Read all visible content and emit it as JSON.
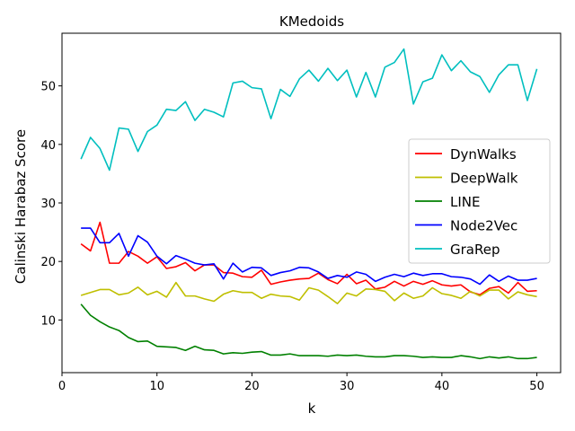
{
  "chart_data": {
    "type": "line",
    "title": "KMedoids",
    "xlabel": "k",
    "ylabel": "Calinski Harabaz Score",
    "xlim": [
      0,
      52.5
    ],
    "ylim": [
      1,
      59
    ],
    "xticks": [
      0,
      10,
      20,
      30,
      40,
      50
    ],
    "yticks": [
      10,
      20,
      30,
      40,
      50
    ],
    "legend_position": "center-right",
    "x": [
      2,
      3,
      4,
      5,
      6,
      7,
      8,
      9,
      10,
      11,
      12,
      13,
      14,
      15,
      16,
      17,
      18,
      19,
      20,
      21,
      22,
      23,
      24,
      25,
      26,
      27,
      28,
      29,
      30,
      31,
      32,
      33,
      34,
      35,
      36,
      37,
      38,
      39,
      40,
      41,
      42,
      43,
      44,
      45,
      46,
      47,
      48,
      49,
      50
    ],
    "series": [
      {
        "name": "DynWalks",
        "color": "#ff0000",
        "values": [
          23.0,
          21.8,
          26.7,
          19.7,
          19.7,
          21.7,
          20.9,
          19.7,
          20.8,
          18.8,
          19.1,
          19.8,
          18.4,
          19.4,
          19.4,
          18.1,
          18.0,
          17.4,
          17.3,
          18.5,
          16.1,
          16.5,
          16.8,
          17.0,
          17.1,
          18.0,
          16.9,
          16.2,
          17.8,
          16.2,
          16.8,
          15.3,
          15.6,
          16.6,
          15.8,
          16.6,
          16.1,
          16.7,
          16.0,
          15.8,
          16.0,
          14.8,
          14.3,
          15.4,
          15.7,
          14.6,
          16.4,
          14.9,
          15.0
        ]
      },
      {
        "name": "DeepWalk",
        "color": "#bfbf00",
        "values": [
          14.2,
          14.7,
          15.2,
          15.2,
          14.3,
          14.6,
          15.6,
          14.3,
          14.9,
          13.9,
          16.4,
          14.1,
          14.1,
          13.6,
          13.2,
          14.4,
          15.0,
          14.7,
          14.7,
          13.7,
          14.4,
          14.1,
          14.0,
          13.4,
          15.5,
          15.1,
          14.0,
          12.8,
          14.6,
          14.1,
          15.3,
          15.2,
          14.9,
          13.3,
          14.6,
          13.7,
          14.1,
          15.5,
          14.5,
          14.2,
          13.7,
          14.9,
          14.1,
          15.1,
          15.1,
          13.6,
          14.8,
          14.3,
          14.0
        ]
      },
      {
        "name": "LINE",
        "color": "#008000",
        "values": [
          12.7,
          10.8,
          9.7,
          8.8,
          8.2,
          7.0,
          6.3,
          6.4,
          5.5,
          5.4,
          5.3,
          4.8,
          5.5,
          4.9,
          4.8,
          4.2,
          4.4,
          4.3,
          4.5,
          4.6,
          4.0,
          4.0,
          4.2,
          3.9,
          3.9,
          3.9,
          3.8,
          4.0,
          3.9,
          4.0,
          3.8,
          3.7,
          3.7,
          3.9,
          3.9,
          3.8,
          3.6,
          3.7,
          3.6,
          3.6,
          3.9,
          3.7,
          3.4,
          3.7,
          3.5,
          3.7,
          3.4,
          3.4,
          3.6
        ]
      },
      {
        "name": "Node2Vec",
        "color": "#0000ff",
        "values": [
          25.7,
          25.7,
          23.2,
          23.2,
          24.8,
          20.9,
          24.4,
          23.3,
          20.9,
          19.6,
          21.0,
          20.4,
          19.7,
          19.4,
          19.6,
          17.0,
          19.7,
          18.2,
          19.0,
          18.9,
          17.6,
          18.1,
          18.4,
          19.0,
          18.9,
          18.2,
          17.1,
          17.6,
          17.3,
          18.2,
          17.8,
          16.6,
          17.3,
          17.8,
          17.4,
          18.0,
          17.6,
          17.9,
          17.9,
          17.4,
          17.3,
          17.0,
          16.1,
          17.7,
          16.6,
          17.5,
          16.8,
          16.8,
          17.1
        ]
      },
      {
        "name": "GraRep",
        "color": "#00bfbf",
        "values": [
          37.5,
          41.2,
          39.3,
          35.6,
          42.8,
          42.6,
          38.8,
          42.2,
          43.3,
          46.0,
          45.8,
          47.3,
          44.1,
          46.0,
          45.5,
          44.7,
          50.5,
          50.8,
          49.7,
          49.5,
          44.4,
          49.4,
          48.2,
          51.2,
          52.7,
          50.8,
          53.0,
          50.9,
          52.7,
          48.1,
          52.3,
          48.1,
          53.2,
          54.0,
          56.3,
          46.9,
          50.7,
          51.3,
          55.3,
          52.6,
          54.3,
          52.4,
          51.6,
          48.9,
          51.9,
          53.6,
          53.6,
          47.5,
          52.9
        ]
      }
    ]
  }
}
